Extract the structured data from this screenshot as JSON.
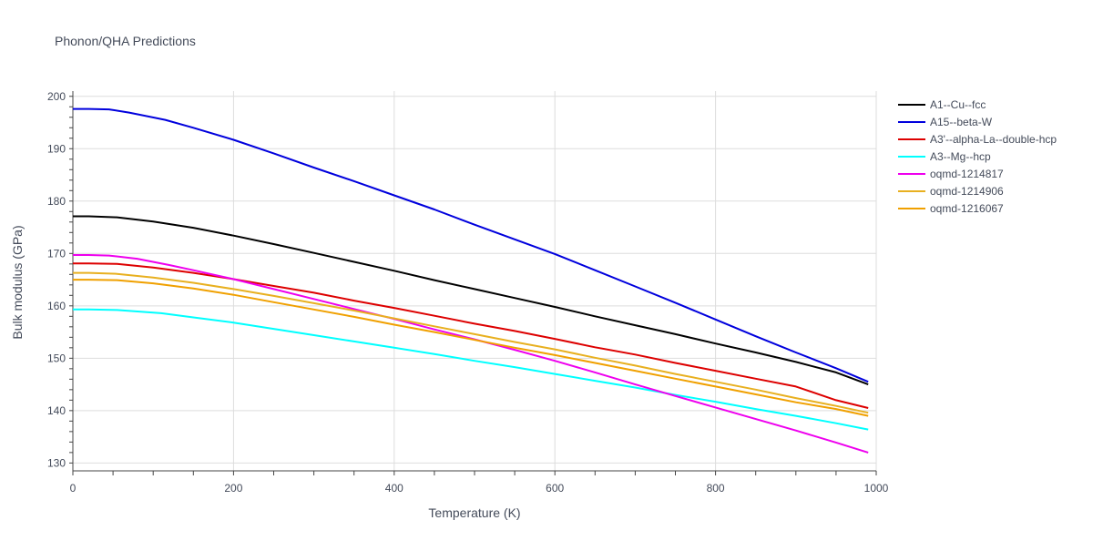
{
  "chart_data": {
    "type": "line",
    "title": "Phonon/QHA Predictions",
    "xlabel": "Temperature (K)",
    "ylabel": "Bulk modulus (GPa)",
    "xlim": [
      0,
      1000
    ],
    "ylim": [
      128.5,
      201
    ],
    "xticks": [
      0,
      200,
      400,
      600,
      800,
      1000
    ],
    "yticks": [
      130,
      140,
      150,
      160,
      170,
      180,
      190,
      200
    ],
    "grid": true,
    "legend_position": "right",
    "series": [
      {
        "name": "A1--Cu--fcc",
        "color": "#000000",
        "x": [
          0,
          20,
          55,
          100,
          150,
          200,
          250,
          300,
          350,
          400,
          450,
          500,
          550,
          600,
          650,
          700,
          750,
          800,
          850,
          900,
          950,
          990
        ],
        "y": [
          177.1,
          177.1,
          176.9,
          176.1,
          174.9,
          173.4,
          171.8,
          170.1,
          168.4,
          166.7,
          164.9,
          163.2,
          161.5,
          159.8,
          158.0,
          156.3,
          154.6,
          152.8,
          151.1,
          149.3,
          147.3,
          145.0
        ]
      },
      {
        "name": "A15--beta-W",
        "color": "#0000dd",
        "x": [
          0,
          20,
          45,
          70,
          115,
          150,
          200,
          250,
          300,
          350,
          400,
          450,
          500,
          550,
          600,
          650,
          700,
          750,
          800,
          850,
          900,
          950,
          990
        ],
        "y": [
          197.6,
          197.6,
          197.5,
          196.9,
          195.5,
          194.0,
          191.7,
          189.1,
          186.4,
          183.8,
          181.1,
          178.4,
          175.5,
          172.7,
          169.9,
          166.8,
          163.7,
          160.6,
          157.4,
          154.2,
          151.1,
          148.1,
          145.5
        ]
      },
      {
        "name": "A3'--alpha-La--double-hcp",
        "color": "#dd0000",
        "x": [
          0,
          20,
          55,
          100,
          150,
          200,
          250,
          300,
          350,
          400,
          450,
          500,
          550,
          600,
          650,
          700,
          750,
          800,
          850,
          900,
          950,
          990
        ],
        "y": [
          168.1,
          168.1,
          168.0,
          167.3,
          166.3,
          165.1,
          163.8,
          162.5,
          161.0,
          159.6,
          158.1,
          156.6,
          155.2,
          153.7,
          152.1,
          150.7,
          149.1,
          147.6,
          146.1,
          144.6,
          142.0,
          140.5
        ]
      },
      {
        "name": "A3--Mg--hcp",
        "color": "#00ffff",
        "x": [
          0,
          20,
          55,
          110,
          150,
          200,
          250,
          300,
          350,
          400,
          450,
          500,
          550,
          600,
          650,
          700,
          750,
          800,
          850,
          900,
          950,
          990
        ],
        "y": [
          159.3,
          159.3,
          159.2,
          158.6,
          157.8,
          156.8,
          155.6,
          154.4,
          153.2,
          152.0,
          150.8,
          149.5,
          148.3,
          147.0,
          145.7,
          144.4,
          143.0,
          141.7,
          140.3,
          139.0,
          137.6,
          136.4
        ]
      },
      {
        "name": "oqmd-1214817",
        "color": "#ee00ee",
        "x": [
          0,
          20,
          45,
          80,
          120,
          150,
          200,
          250,
          300,
          350,
          400,
          450,
          500,
          550,
          600,
          650,
          700,
          750,
          800,
          850,
          900,
          950,
          990
        ],
        "y": [
          169.7,
          169.7,
          169.6,
          169.0,
          167.8,
          166.8,
          165.1,
          163.2,
          161.3,
          159.4,
          157.5,
          155.5,
          153.6,
          151.6,
          149.5,
          147.3,
          145.0,
          142.8,
          140.6,
          138.4,
          136.2,
          133.9,
          132.0
        ]
      },
      {
        "name": "oqmd-1214906",
        "color": "#e8b020",
        "x": [
          0,
          20,
          55,
          100,
          150,
          200,
          250,
          300,
          350,
          400,
          450,
          500,
          550,
          600,
          650,
          700,
          750,
          800,
          850,
          900,
          950,
          990
        ],
        "y": [
          166.3,
          166.3,
          166.1,
          165.4,
          164.4,
          163.2,
          161.9,
          160.5,
          159.1,
          157.6,
          156.1,
          154.6,
          153.1,
          151.7,
          150.1,
          148.6,
          147.0,
          145.5,
          144.0,
          142.4,
          140.9,
          139.6
        ]
      },
      {
        "name": "oqmd-1216067",
        "color": "#f0a000",
        "x": [
          0,
          20,
          55,
          100,
          150,
          200,
          250,
          300,
          350,
          400,
          450,
          500,
          550,
          600,
          650,
          700,
          750,
          800,
          850,
          900,
          950,
          990
        ],
        "y": [
          165.0,
          165.0,
          164.9,
          164.3,
          163.3,
          162.1,
          160.7,
          159.3,
          157.9,
          156.4,
          155.0,
          153.5,
          152.0,
          150.6,
          149.1,
          147.6,
          146.1,
          144.6,
          143.1,
          141.6,
          140.3,
          139.0
        ]
      }
    ]
  }
}
